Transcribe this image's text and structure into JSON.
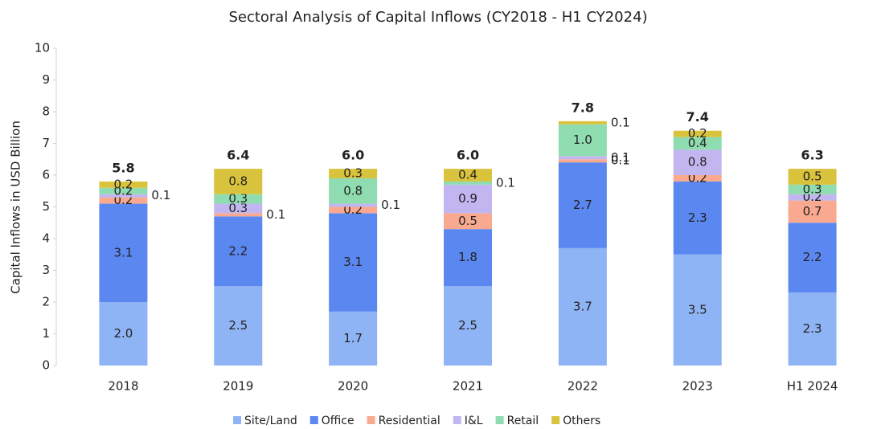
{
  "chart_data": {
    "type": "stacked-bar",
    "title": "Sectoral Analysis of Capital Inflows (CY2018 - H1 CY2024)",
    "y_label": "Capital Inflows in USD Billion",
    "categories": [
      "2018",
      "2019",
      "2020",
      "2021",
      "2022",
      "2023",
      "H1 2024"
    ],
    "series": [
      {
        "name": "Site/Land",
        "color": "#8fb4f5",
        "values": [
          2.0,
          2.5,
          1.7,
          2.5,
          3.7,
          3.5,
          2.3
        ],
        "value_labels": [
          "2.0",
          "2.5",
          "1.7",
          "2.5",
          "3.7",
          "3.5",
          "2.3"
        ]
      },
      {
        "name": "Office",
        "color": "#5b87f0",
        "values": [
          3.1,
          2.2,
          3.1,
          1.8,
          2.7,
          2.3,
          2.2
        ],
        "value_labels": [
          "3.1",
          "2.2",
          "3.1",
          "1.8",
          "2.7",
          "2.3",
          "2.2"
        ]
      },
      {
        "name": "Residential",
        "color": "#f9a98f",
        "values": [
          0.2,
          0.1,
          0.2,
          0.5,
          0.1,
          0.2,
          0.7
        ],
        "value_labels": [
          "0.2",
          "0.1",
          "0.2",
          "0.5",
          "0.1",
          "0.2",
          "0.7"
        ]
      },
      {
        "name": "I&L",
        "color": "#c2b6f0",
        "values": [
          0.1,
          0.3,
          0.1,
          0.9,
          0.1,
          0.8,
          0.2
        ],
        "value_labels": [
          "0.1",
          "0.3",
          "0.1",
          "0.9",
          "0.1",
          "0.8",
          "0.2"
        ]
      },
      {
        "name": "Retail",
        "color": "#8fdcb0",
        "values": [
          0.2,
          0.3,
          0.8,
          0.1,
          1.0,
          0.4,
          0.3
        ],
        "value_labels": [
          "0.2",
          "0.3",
          "0.8",
          "0.1",
          "1.0",
          "0.4",
          "0.3"
        ]
      },
      {
        "name": "Others",
        "color": "#d9c33d",
        "values": [
          0.2,
          0.8,
          0.3,
          0.4,
          0.1,
          0.2,
          0.5
        ],
        "value_labels": [
          "0.2",
          "0.8",
          "0.3",
          "0.4",
          "0.1",
          "0.2",
          "0.5"
        ]
      }
    ],
    "totals": [
      5.8,
      6.4,
      6.0,
      6.0,
      7.8,
      7.4,
      6.3
    ],
    "total_labels": [
      "5.8",
      "6.4",
      "6.0",
      "6.0",
      "7.8",
      "7.4",
      "6.3"
    ],
    "ylim": [
      0,
      10
    ],
    "yticks": [
      0,
      1,
      2,
      3,
      4,
      5,
      6,
      7,
      8,
      9,
      10
    ],
    "grid": false,
    "legend": "bottom"
  }
}
